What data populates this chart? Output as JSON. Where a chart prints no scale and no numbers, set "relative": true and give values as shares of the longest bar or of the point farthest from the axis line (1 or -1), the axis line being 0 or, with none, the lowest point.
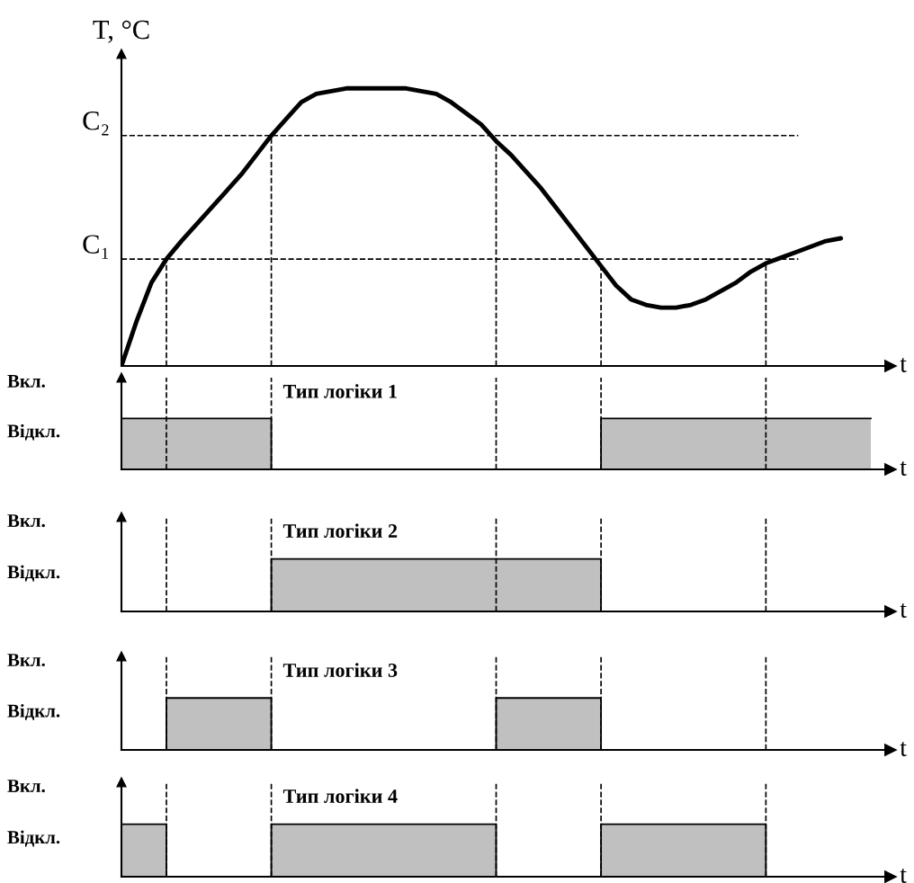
{
  "chart_data": [
    {
      "type": "line",
      "relative": true,
      "ylabel": "T, °C",
      "xlabel": "t",
      "categories": [
        null,
        null,
        null,
        null,
        null,
        null,
        null,
        null,
        null,
        null,
        null,
        null,
        null,
        null,
        null,
        null,
        null,
        null,
        null,
        null,
        null,
        null,
        null,
        null,
        null,
        null,
        null,
        null,
        null,
        null,
        null,
        null,
        null,
        null,
        null,
        null,
        null,
        null,
        null,
        null,
        null,
        null,
        null,
        null,
        null,
        null,
        null,
        null,
        null,
        null,
        null
      ],
      "series": [
        {
          "color": "#000000",
          "values": [
            0,
            0.16,
            0.3,
            0.385,
            0.45,
            0.51,
            0.57,
            0.63,
            0.69,
            0.76,
            0.83,
            0.89,
            0.95,
            0.98,
            0.99,
            1,
            1,
            1,
            1,
            1,
            0.99,
            0.98,
            0.95,
            0.91,
            0.87,
            0.81,
            0.76,
            0.7,
            0.64,
            0.57,
            0.5,
            0.43,
            0.36,
            0.29,
            0.24,
            0.22,
            0.21,
            0.21,
            0.22,
            0.24,
            0.27,
            0.3,
            0.34,
            0.37,
            0.39,
            0.41,
            0.43,
            0.45,
            0.46,
            null,
            null
          ]
        }
      ],
      "ref_lines": [
        {
          "axis": "y",
          "value": 0.83,
          "label": "C₂",
          "line_style": "dashed"
        },
        {
          "axis": "y",
          "value": 0.385,
          "label": "C₁",
          "line_style": "dashed"
        }
      ]
    },
    {
      "type": "area",
      "relative": true,
      "title": "Тип логіки 1",
      "xlabel": "t",
      "grid": "x",
      "annotations": [
        "Вкл.",
        "Відкл."
      ],
      "categories": [
        null,
        null,
        null,
        null,
        null,
        null,
        null,
        null,
        null,
        null,
        null,
        null,
        null,
        null,
        null,
        null,
        null,
        null,
        null,
        null,
        null,
        null,
        null,
        null,
        null,
        null,
        null,
        null,
        null,
        null,
        null,
        null,
        null,
        null,
        null,
        null,
        null,
        null,
        null,
        null,
        null,
        null,
        null,
        null,
        null,
        null,
        null,
        null,
        null,
        null,
        null
      ],
      "series": [
        {
          "color": "#c0c0c0",
          "values": [
            1,
            1,
            1,
            1,
            1,
            1,
            1,
            1,
            1,
            1,
            0,
            0,
            0,
            0,
            0,
            0,
            0,
            0,
            0,
            0,
            0,
            0,
            0,
            0,
            0,
            0,
            0,
            0,
            0,
            0,
            0,
            0,
            1,
            1,
            1,
            1,
            1,
            1,
            1,
            1,
            1,
            1,
            1,
            1,
            1,
            1,
            1,
            1,
            1,
            1,
            1
          ]
        }
      ]
    },
    {
      "type": "area",
      "relative": true,
      "title": "Тип логіки 2",
      "xlabel": "t",
      "grid": "x",
      "annotations": [
        "Вкл.",
        "Відкл."
      ],
      "categories": [
        null,
        null,
        null,
        null,
        null,
        null,
        null,
        null,
        null,
        null,
        null,
        null,
        null,
        null,
        null,
        null,
        null,
        null,
        null,
        null,
        null,
        null,
        null,
        null,
        null,
        null,
        null,
        null,
        null,
        null,
        null,
        null,
        null,
        null,
        null,
        null,
        null,
        null,
        null,
        null,
        null,
        null,
        null,
        null,
        null,
        null,
        null,
        null,
        null,
        null,
        null
      ],
      "series": [
        {
          "color": "#c0c0c0",
          "values": [
            0,
            0,
            0,
            0,
            0,
            0,
            0,
            0,
            0,
            0,
            1,
            1,
            1,
            1,
            1,
            1,
            1,
            1,
            1,
            1,
            1,
            1,
            1,
            1,
            1,
            1,
            1,
            1,
            1,
            1,
            1,
            1,
            0,
            0,
            0,
            0,
            0,
            0,
            0,
            0,
            0,
            0,
            0,
            0,
            0,
            0,
            0,
            0,
            0,
            0,
            0
          ]
        }
      ]
    },
    {
      "type": "area",
      "relative": true,
      "title": "Тип логіки 3",
      "xlabel": "t",
      "grid": "x",
      "annotations": [
        "Вкл.",
        "Відкл."
      ],
      "categories": [
        null,
        null,
        null,
        null,
        null,
        null,
        null,
        null,
        null,
        null,
        null,
        null,
        null,
        null,
        null,
        null,
        null,
        null,
        null,
        null,
        null,
        null,
        null,
        null,
        null,
        null,
        null,
        null,
        null,
        null,
        null,
        null,
        null,
        null,
        null,
        null,
        null,
        null,
        null,
        null,
        null,
        null,
        null,
        null,
        null,
        null,
        null,
        null,
        null,
        null,
        null
      ],
      "series": [
        {
          "color": "#c0c0c0",
          "values": [
            0,
            0,
            0,
            1,
            1,
            1,
            1,
            1,
            1,
            1,
            0,
            0,
            0,
            0,
            0,
            0,
            0,
            0,
            0,
            0,
            0,
            0,
            0,
            0,
            0,
            1,
            1,
            1,
            1,
            1,
            1,
            1,
            0,
            0,
            0,
            0,
            0,
            0,
            0,
            0,
            0,
            0,
            0,
            0,
            0,
            0,
            0,
            0,
            0,
            0,
            0
          ]
        }
      ]
    },
    {
      "type": "area",
      "relative": true,
      "title": "Тип логіки 4",
      "xlabel": "t",
      "grid": "x",
      "annotations": [
        "Вкл.",
        "Відкл."
      ],
      "categories": [
        null,
        null,
        null,
        null,
        null,
        null,
        null,
        null,
        null,
        null,
        null,
        null,
        null,
        null,
        null,
        null,
        null,
        null,
        null,
        null,
        null,
        null,
        null,
        null,
        null,
        null,
        null,
        null,
        null,
        null,
        null,
        null,
        null,
        null,
        null,
        null,
        null,
        null,
        null,
        null,
        null,
        null,
        null,
        null,
        null,
        null,
        null,
        null,
        null,
        null,
        null
      ],
      "series": [
        {
          "color": "#c0c0c0",
          "values": [
            1,
            1,
            1,
            0,
            0,
            0,
            0,
            0,
            0,
            0,
            1,
            1,
            1,
            1,
            1,
            1,
            1,
            1,
            1,
            1,
            1,
            1,
            1,
            1,
            1,
            0,
            0,
            0,
            0,
            0,
            0,
            0,
            1,
            1,
            1,
            1,
            1,
            1,
            1,
            1,
            1,
            1,
            1,
            0,
            0,
            0,
            0,
            0,
            0,
            0,
            0
          ]
        }
      ]
    }
  ]
}
